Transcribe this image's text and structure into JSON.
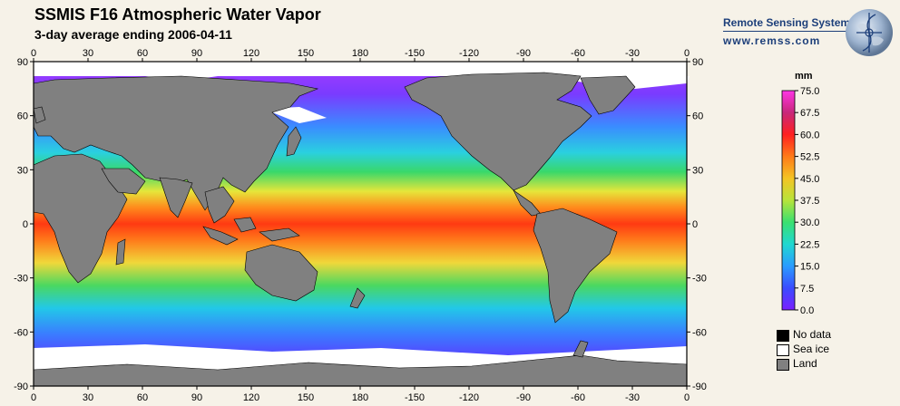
{
  "header": {
    "title": "SSMIS F16 Atmospheric Water Vapor",
    "subtitle": "3-day average ending 2006-04-11"
  },
  "brand": {
    "name": "Remote Sensing Systems",
    "url": "www.remss.com",
    "logo": "globe-logo-icon"
  },
  "map_axes": {
    "lon_ticks": [
      "0",
      "30",
      "60",
      "90",
      "120",
      "150",
      "180",
      "-150",
      "-120",
      "-90",
      "-60",
      "-30",
      "0"
    ],
    "lat_ticks": [
      "90",
      "60",
      "30",
      "0",
      "-30",
      "-60",
      "-90"
    ]
  },
  "colorbar": {
    "unit": "mm",
    "range": [
      0.0,
      75.0
    ],
    "ticks": [
      "75.0",
      "67.5",
      "60.0",
      "52.5",
      "45.0",
      "37.5",
      "30.0",
      "22.5",
      "15.0",
      "7.5",
      "0.0"
    ]
  },
  "legend": {
    "items": [
      {
        "label": "No data",
        "color": "#000000"
      },
      {
        "label": "Sea ice",
        "color": "#ffffff"
      },
      {
        "label": "Land",
        "color": "#808080"
      }
    ]
  },
  "colors": {
    "land": "#808080",
    "sea_ice": "#ffffff",
    "background": "#f6f2e8"
  }
}
